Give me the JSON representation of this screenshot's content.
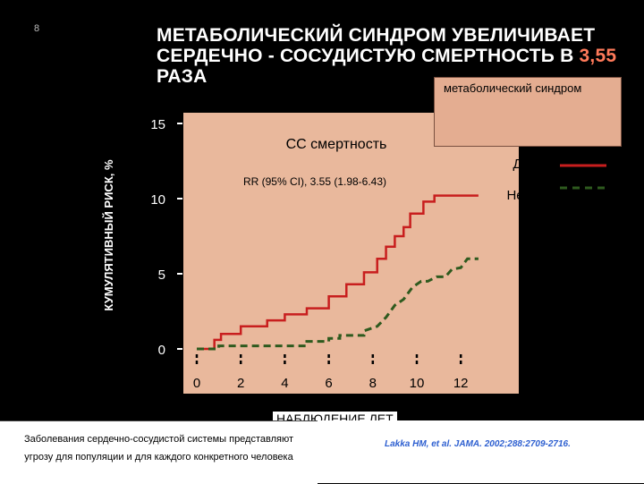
{
  "slide_number": "8",
  "title": {
    "line1": "МЕТАБОЛИЧЕСКИЙ СИНДРОМ УВЕЛИЧИВАЕТ",
    "line2_text": "СЕРДЕЧНО - СОСУДИСТУЮ СМЕРТНОСТЬ В ",
    "line2_value": "3,55",
    "line3": "РАЗА"
  },
  "legend_box_label": "метаболический синдром",
  "footnote": "Заболевания сердечно-сосудистой системы представляют угрозу для популяции и для каждого конкретного человека",
  "citation": "Lakka HM, et al. JAMA. 2002;288:2709-2716.",
  "colors": {
    "background": "#000000",
    "plot_bg": "#e9b89c",
    "series_yes": "#c81e1e",
    "series_no": "#2e5a1e",
    "title_highlight": "#ff7a5a"
  },
  "chart_data": {
    "type": "line",
    "title": "СС смертность",
    "annotation": "RR (95% CI), 3.55 (1.98-6.43)",
    "xlabel": "НАБЛЮДЕНИЕ ЛЕТ",
    "ylabel": "КУМУЛЯТИВНЫЙ РИСК, %",
    "xticks": [
      0,
      2,
      4,
      6,
      8,
      10,
      12
    ],
    "yticks": [
      0,
      5,
      10,
      15
    ],
    "xlim": [
      0,
      13
    ],
    "ylim": [
      0,
      16.5
    ],
    "legend_placement": "top-right",
    "series": [
      {
        "name": "Да",
        "color": "#c81e1e",
        "style": "solid",
        "x": [
          0,
          0.8,
          0.8,
          1.1,
          1.1,
          2.0,
          2.0,
          3.2,
          3.2,
          4.0,
          4.0,
          5.0,
          5.0,
          6.0,
          6.0,
          6.8,
          6.8,
          7.6,
          7.6,
          8.2,
          8.2,
          8.6,
          8.6,
          9.0,
          9.0,
          9.4,
          9.4,
          9.7,
          9.7,
          10.3,
          10.3,
          10.8,
          10.8,
          12.8
        ],
        "y": [
          0,
          0,
          0.6,
          0.6,
          1.0,
          1.0,
          1.5,
          1.5,
          1.9,
          1.9,
          2.3,
          2.3,
          2.7,
          2.7,
          3.5,
          3.5,
          4.3,
          4.3,
          5.1,
          5.1,
          6.0,
          6.0,
          6.8,
          6.8,
          7.5,
          7.5,
          8.1,
          8.1,
          9.0,
          9.0,
          9.8,
          9.8,
          10.2,
          10.2
        ]
      },
      {
        "name": "Нет",
        "color": "#2e5a1e",
        "style": "dashed",
        "x": [
          0,
          1.0,
          1.0,
          5.0,
          5.0,
          6.0,
          6.0,
          6.5,
          6.5,
          7.6,
          7.6,
          8.2,
          8.6,
          9.0,
          9.4,
          9.8,
          10.2,
          10.5,
          10.9,
          11.3,
          11.6,
          12.0,
          12.3,
          12.8
        ],
        "y": [
          0,
          0,
          0.2,
          0.2,
          0.5,
          0.5,
          0.7,
          0.7,
          0.9,
          0.9,
          1.2,
          1.5,
          2.1,
          2.9,
          3.3,
          4.1,
          4.5,
          4.5,
          4.8,
          4.8,
          5.3,
          5.4,
          6.0,
          6.0
        ]
      }
    ]
  }
}
